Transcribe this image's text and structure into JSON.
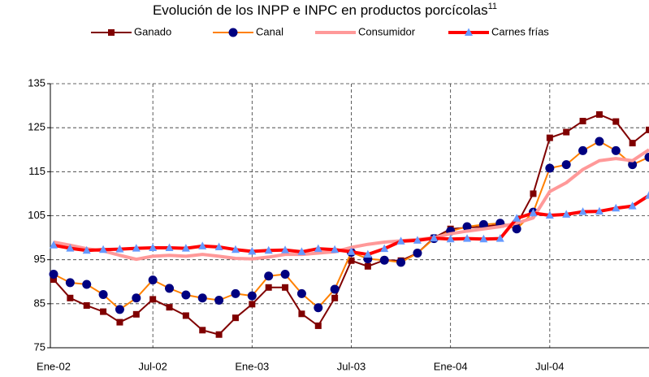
{
  "chart_data": {
    "type": "line",
    "title": "Evolución de los INPP e INPC en productos porcícolas",
    "title_superscript": "11",
    "categories": [
      "Ene-02",
      null,
      null,
      null,
      null,
      null,
      "Jul-02",
      null,
      null,
      null,
      null,
      null,
      "Ene-03",
      null,
      null,
      null,
      null,
      null,
      "Jul-03",
      null,
      null,
      null,
      null,
      null,
      "Ene-04",
      null,
      null,
      null,
      null,
      null,
      "Jul-04",
      null,
      null,
      null,
      null,
      null,
      null
    ],
    "series": [
      {
        "name": "Ganado",
        "color": "#800000",
        "marker": "square",
        "marker_color": "#800000",
        "line_width": 2,
        "values": [
          90.5,
          86.3,
          84.6,
          83.2,
          80.8,
          82.6,
          86.0,
          84.2,
          82.3,
          79.0,
          78.0,
          81.8,
          84.9,
          88.7,
          88.7,
          82.7,
          80.0,
          86.3,
          94.8,
          93.5,
          94.9,
          94.8,
          96.5,
          100.0,
          102.0,
          102.3,
          102.5,
          103.0,
          103.0,
          110.0,
          122.7,
          124.0,
          126.5,
          128.0,
          126.4,
          121.5,
          124.5
        ]
      },
      {
        "name": "Canal",
        "color": "#ff8000",
        "marker": "circle",
        "marker_color": "#000080",
        "line_width": 2,
        "values": [
          91.7,
          89.8,
          89.4,
          87.1,
          83.7,
          86.3,
          90.4,
          88.5,
          87.0,
          86.3,
          85.8,
          87.3,
          86.8,
          91.3,
          91.7,
          87.3,
          84.1,
          88.3,
          96.7,
          95.2,
          94.9,
          94.4,
          96.5,
          99.8,
          101.5,
          102.5,
          103.0,
          103.3,
          102.0,
          105.8,
          115.8,
          116.6,
          119.8,
          121.9,
          119.8,
          116.6,
          118.3
        ]
      },
      {
        "name": "Consumidor",
        "color": "#ff9999",
        "marker": "none",
        "marker_color": "#ff9999",
        "line_width": 4,
        "values": [
          99.0,
          98.3,
          97.5,
          97.0,
          96.0,
          95.1,
          95.8,
          96.0,
          95.8,
          96.2,
          95.8,
          95.3,
          95.2,
          95.6,
          96.2,
          96.2,
          96.5,
          96.8,
          97.8,
          98.5,
          99.0,
          99.3,
          99.6,
          100.0,
          100.9,
          101.5,
          102.0,
          102.5,
          103.3,
          104.5,
          110.5,
          112.5,
          115.5,
          117.5,
          118.0,
          117.5,
          120.0
        ]
      },
      {
        "name": "Carnes frías",
        "color": "#ff0000",
        "marker": "triangle",
        "marker_color": "#6699ff",
        "line_width": 4,
        "values": [
          98.3,
          97.6,
          97.1,
          97.3,
          97.4,
          97.6,
          97.7,
          97.7,
          97.6,
          98.1,
          97.9,
          97.3,
          96.9,
          97.1,
          97.2,
          96.8,
          97.5,
          97.3,
          96.8,
          96.2,
          97.5,
          99.2,
          99.4,
          99.9,
          99.7,
          99.8,
          99.7,
          99.8,
          104.4,
          105.6,
          105.1,
          105.3,
          105.9,
          106.0,
          106.7,
          107.2,
          109.6
        ]
      }
    ],
    "ylim": [
      75,
      135
    ],
    "yticks": [
      75,
      85,
      95,
      105,
      115,
      125,
      135
    ],
    "grid": true,
    "legend": "top"
  }
}
